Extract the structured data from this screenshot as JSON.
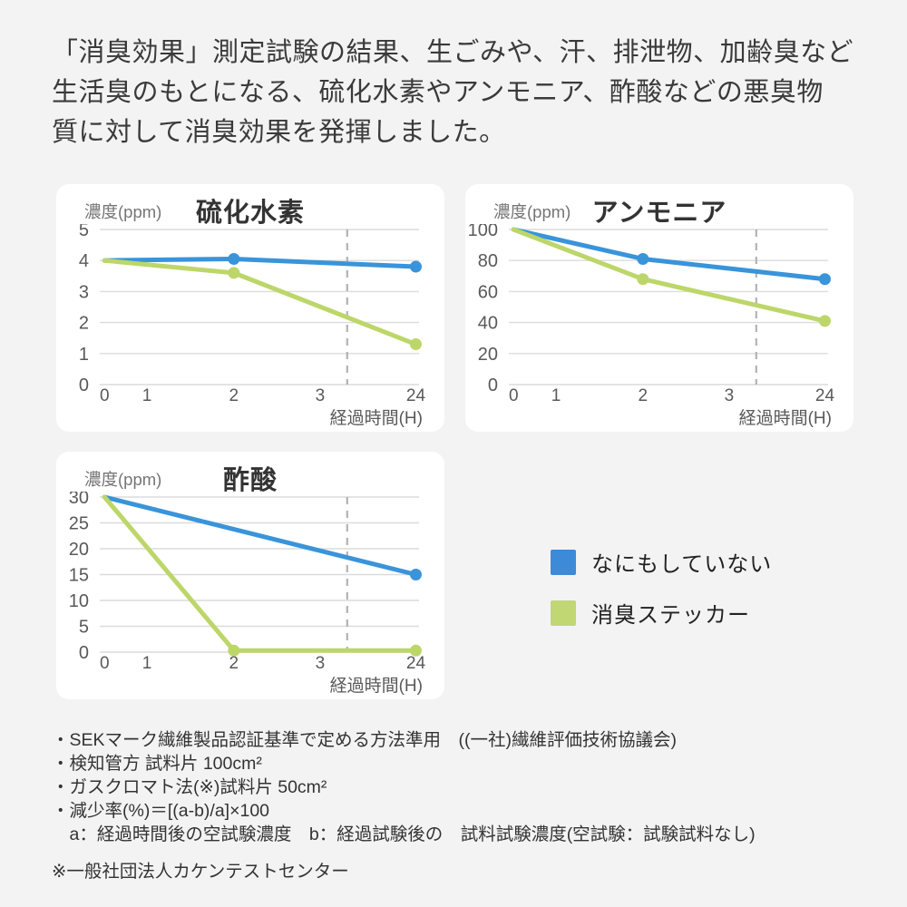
{
  "page": {
    "background": "#f3f3f4",
    "panel_background": "#ffffff"
  },
  "header": {
    "lines": [
      "「消臭効果」測定試験の結果、生ごみや、汗、排泄物、加齢臭など",
      "生活臭のもとになる、硫化水素やアンモニア、酢酸などの悪臭物",
      "質に対して消臭効果を発揮しました。"
    ]
  },
  "colors": {
    "untreated_blue": "#3994da",
    "sticker_green": "#bdd669",
    "gridline": "#dcdcde",
    "axis_break": "#b2b2b5",
    "tick_text": "#595959",
    "title_text": "#333333",
    "ylabel_text": "#757575"
  },
  "chart_data": [
    {
      "type": "line",
      "title": "硫化水素",
      "ylabel": "濃度(ppm)",
      "xlabel": "経過時間(H)",
      "x_ticks": [
        0,
        1,
        2,
        3,
        24
      ],
      "y_ticks": [
        0,
        1,
        2,
        3,
        4,
        5
      ],
      "ylim": [
        0,
        5
      ],
      "grid": "horizontal",
      "axis_break_between": [
        3,
        24
      ],
      "series": [
        {
          "name": "なにもしていない",
          "color": "#3994da",
          "points": [
            {
              "x": 0,
              "y": 4.0
            },
            {
              "x": 2,
              "y": 4.05,
              "dot": true
            },
            {
              "x": 24,
              "y": 3.8,
              "dot": true
            }
          ]
        },
        {
          "name": "消臭ステッカー",
          "color": "#bdd669",
          "points": [
            {
              "x": 0,
              "y": 4.0
            },
            {
              "x": 2,
              "y": 3.6,
              "dot": true
            },
            {
              "x": 24,
              "y": 1.3,
              "dot": true
            }
          ]
        }
      ]
    },
    {
      "type": "line",
      "title": "アンモニア",
      "ylabel": "濃度(ppm)",
      "xlabel": "経過時間(H)",
      "x_ticks": [
        0,
        1,
        2,
        3,
        24
      ],
      "y_ticks": [
        0,
        20,
        40,
        60,
        80,
        100
      ],
      "ylim": [
        0,
        100
      ],
      "grid": "horizontal",
      "axis_break_between": [
        3,
        24
      ],
      "series": [
        {
          "name": "なにもしていない",
          "color": "#3994da",
          "points": [
            {
              "x": 0,
              "y": 100
            },
            {
              "x": 2,
              "y": 81,
              "dot": true
            },
            {
              "x": 24,
              "y": 68,
              "dot": true
            }
          ]
        },
        {
          "name": "消臭ステッカー",
          "color": "#bdd669",
          "points": [
            {
              "x": 0,
              "y": 100
            },
            {
              "x": 2,
              "y": 68,
              "dot": true
            },
            {
              "x": 24,
              "y": 41,
              "dot": true
            }
          ]
        }
      ]
    },
    {
      "type": "line",
      "title": "酢酸",
      "ylabel": "濃度(ppm)",
      "xlabel": "経過時間(H)",
      "x_ticks": [
        0,
        1,
        2,
        3,
        24
      ],
      "y_ticks": [
        0,
        5,
        10,
        15,
        20,
        25,
        30
      ],
      "ylim": [
        0,
        30
      ],
      "grid": "horizontal",
      "axis_break_between": [
        3,
        24
      ],
      "series": [
        {
          "name": "なにもしていない",
          "color": "#3994da",
          "points": [
            {
              "x": 0,
              "y": 30
            },
            {
              "x": 24,
              "y": 15,
              "dot": true
            }
          ]
        },
        {
          "name": "消臭ステッカー",
          "color": "#bdd669",
          "points": [
            {
              "x": 0,
              "y": 30
            },
            {
              "x": 2,
              "y": 0.3,
              "dot": true
            },
            {
              "x": 24,
              "y": 0.3,
              "dot": true
            }
          ]
        }
      ]
    }
  ],
  "legend": {
    "items": [
      {
        "label": "なにもしていない",
        "color": "#3d8ad9"
      },
      {
        "label": "消臭ステッカー",
        "color": "#c1d773"
      }
    ]
  },
  "footnotes": {
    "lines": [
      "・SEKマーク繊維製品認証基準で定める方法準用　((一社)繊維評価技術協議会)",
      "・検知管方 試料片 100cm²",
      "・ガスクロマト法(※)試料片 50cm²",
      "・減少率(%)＝[(a-b)/a]×100",
      "　a：経過時間後の空試験濃度　b：経過試験後の　試料試験濃度(空試験：試験試料なし)"
    ],
    "attribution": "※一般社団法人カケンテストセンター"
  }
}
